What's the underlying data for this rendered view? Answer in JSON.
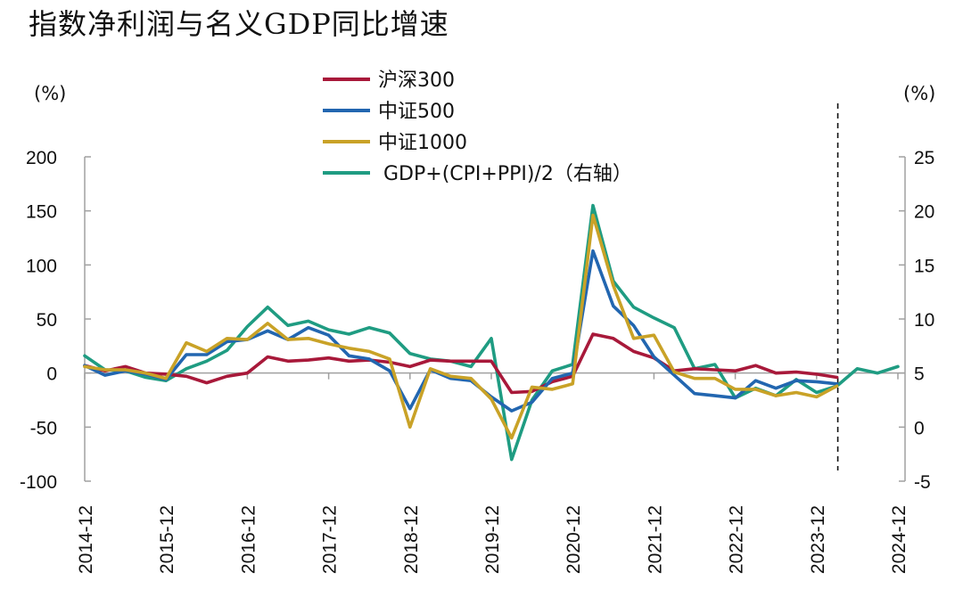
{
  "title": "指数净利润与名义GDP同比增速",
  "chart_data": {
    "type": "line",
    "title": "指数净利润与名义GDP同比增速",
    "left_unit": "(%)",
    "right_unit": "(%)",
    "ylim_left": [
      -100,
      200
    ],
    "ylim_right": [
      -5,
      25
    ],
    "yticks_left": [
      "200",
      "150",
      "100",
      "50",
      "0",
      "-50",
      "-100"
    ],
    "yticks_right": [
      "25",
      "20",
      "15",
      "10",
      "5",
      "0",
      "-5"
    ],
    "x_tick_labels": [
      "2014-12",
      "2015-12",
      "2016-12",
      "2017-12",
      "2018-12",
      "2019-12",
      "2020-12",
      "2021-12",
      "2022-12",
      "2023-12",
      "2024-12"
    ],
    "x": [
      "2014-12",
      "2015-03",
      "2015-06",
      "2015-09",
      "2015-12",
      "2016-03",
      "2016-06",
      "2016-09",
      "2016-12",
      "2017-03",
      "2017-06",
      "2017-09",
      "2017-12",
      "2018-03",
      "2018-06",
      "2018-09",
      "2018-12",
      "2019-03",
      "2019-06",
      "2019-09",
      "2019-12",
      "2020-03",
      "2020-06",
      "2020-09",
      "2020-12",
      "2021-03",
      "2021-06",
      "2021-09",
      "2021-12",
      "2022-03",
      "2022-06",
      "2022-09",
      "2022-12",
      "2023-03",
      "2023-06",
      "2023-09",
      "2023-12",
      "2024-03",
      "2024-06",
      "2024-09",
      "2024-12"
    ],
    "dashed_line_at": "2024-03",
    "legend_position": "top-center",
    "grid": false,
    "series": [
      {
        "name": "沪深300",
        "axis": "left",
        "color": "#a8193a",
        "values": [
          7,
          2,
          6,
          0,
          -1,
          -3,
          -9,
          -3,
          0,
          15,
          11,
          12,
          14,
          11,
          12,
          10,
          6,
          12,
          11,
          11,
          11,
          -18,
          -17,
          -8,
          -3,
          36,
          32,
          20,
          14,
          2,
          4,
          3,
          2,
          7,
          0,
          1,
          -1,
          -4,
          null,
          null,
          null
        ]
      },
      {
        "name": "中证500",
        "axis": "left",
        "color": "#2266b0",
        "values": [
          7,
          -2,
          2,
          -1,
          -6,
          17,
          17,
          29,
          31,
          39,
          31,
          42,
          35,
          16,
          13,
          2,
          -33,
          3,
          -5,
          -7,
          -22,
          -35,
          -27,
          -5,
          0,
          113,
          62,
          44,
          15,
          -2,
          -19,
          -21,
          -23,
          -7,
          -14,
          -7,
          -8,
          -10,
          null,
          null,
          null
        ]
      },
      {
        "name": "中证1000",
        "axis": "left",
        "color": "#c9a227",
        "values": [
          6,
          3,
          3,
          0,
          -5,
          28,
          20,
          32,
          31,
          46,
          31,
          32,
          27,
          23,
          20,
          13,
          -50,
          4,
          -3,
          -5,
          -24,
          -60,
          -13,
          -15,
          -10,
          146,
          81,
          32,
          35,
          1,
          -5,
          -5,
          -15,
          -15,
          -21,
          -18,
          -22,
          -12,
          null,
          null,
          null
        ]
      },
      {
        "name": "GDP+(CPI+PPI)/2（右轴）",
        "axis": "right",
        "color": "#1f9c82",
        "values": [
          6.6,
          5.3,
          5.2,
          4.6,
          4.3,
          5.4,
          6.1,
          7.1,
          9.3,
          11.1,
          9.4,
          9.8,
          9.0,
          8.6,
          9.2,
          8.7,
          6.8,
          6.3,
          6.1,
          5.6,
          8.2,
          -3.0,
          2.5,
          5.2,
          5.8,
          20.5,
          13.5,
          11.1,
          10.1,
          9.2,
          5.4,
          5.8,
          2.7,
          3.6,
          2.9,
          4.4,
          3.2,
          3.8,
          5.4,
          5.0,
          5.6
        ]
      }
    ]
  }
}
